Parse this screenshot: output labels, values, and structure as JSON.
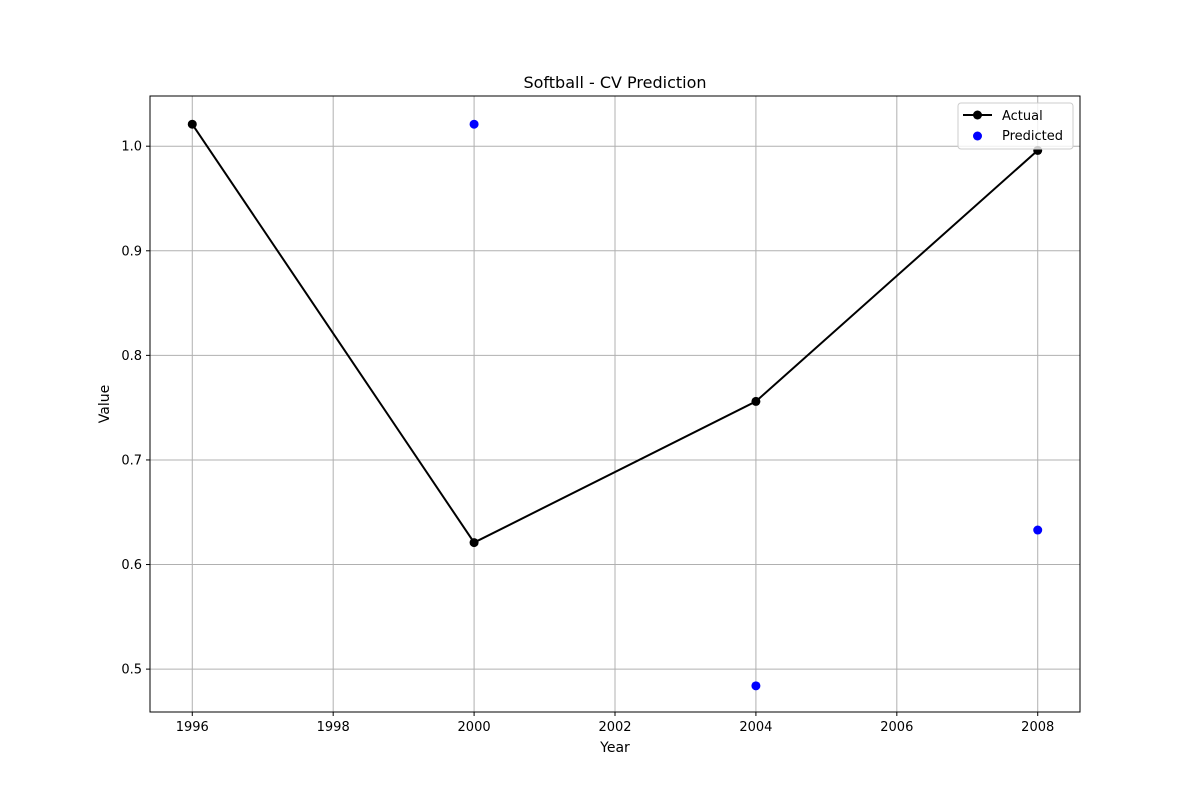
{
  "chart_data": {
    "type": "line",
    "title": "Softball - CV Prediction",
    "xlabel": "Year",
    "ylabel": "Value",
    "xlim": [
      1995.4,
      2008.6
    ],
    "ylim": [
      0.459,
      1.048
    ],
    "x_ticks": [
      1996,
      1998,
      2000,
      2002,
      2004,
      2006,
      2008
    ],
    "y_ticks": [
      0.5,
      0.6,
      0.7,
      0.8,
      0.9,
      1.0
    ],
    "x_tick_labels": [
      "1996",
      "1998",
      "2000",
      "2002",
      "2004",
      "2006",
      "2008"
    ],
    "y_tick_labels": [
      "0.5",
      "0.6",
      "0.7",
      "0.8",
      "0.9",
      "1.0"
    ],
    "grid": true,
    "legend_position": "top-right",
    "series": [
      {
        "name": "Actual",
        "kind": "line",
        "color": "#000000",
        "x": [
          1996,
          2000,
          2004,
          2008
        ],
        "y": [
          1.021,
          0.621,
          0.756,
          0.996
        ]
      },
      {
        "name": "Predicted",
        "kind": "scatter",
        "color": "#0000ff",
        "x": [
          2000,
          2004,
          2008
        ],
        "y": [
          1.021,
          0.484,
          0.633
        ]
      }
    ]
  }
}
